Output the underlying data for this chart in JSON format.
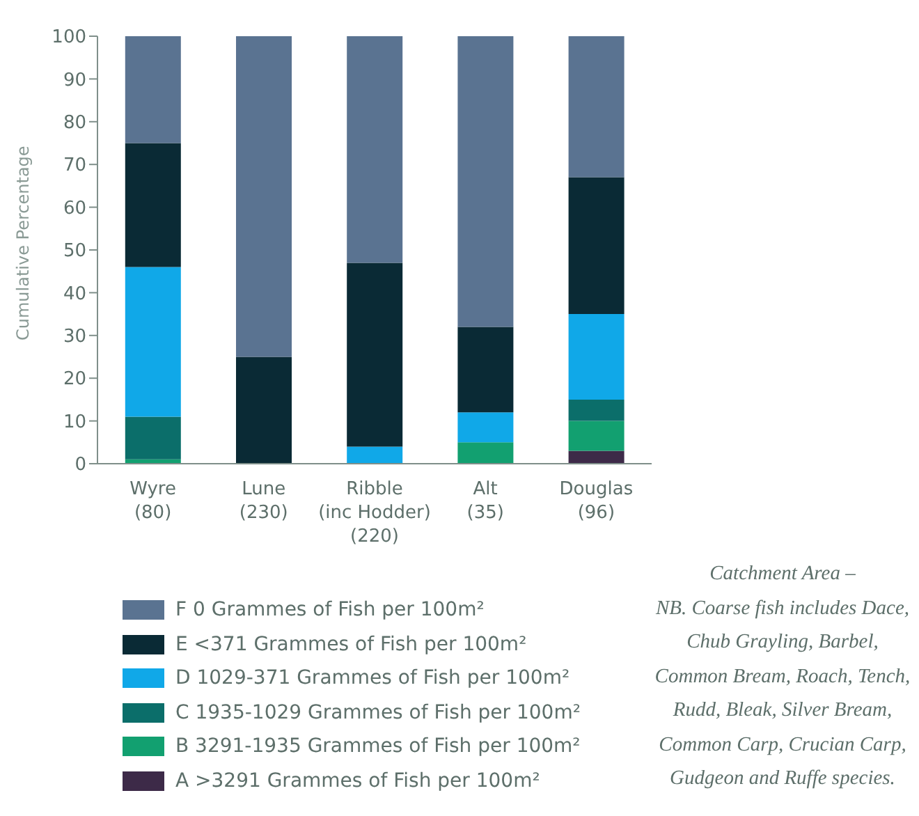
{
  "chart_data": {
    "type": "bar",
    "stacked": true,
    "ylabel": "Cumulative Percentage",
    "categories": [
      "Wyre\n(80)",
      "Lune\n(230)",
      "Ribble\n(inc Hodder)\n(220)",
      "Alt\n(35)",
      "Douglas\n(96)"
    ],
    "series": [
      {
        "name": "A >3291 Grammes of Fish per 100m²",
        "color": "#3d2a48",
        "values": [
          0,
          0,
          0,
          0,
          3
        ]
      },
      {
        "name": "B 3291-1935 Grammes of Fish per 100m²",
        "color": "#12a070",
        "values": [
          1,
          0,
          0,
          5,
          7
        ]
      },
      {
        "name": "C 1935-1029 Grammes of Fish per 100m²",
        "color": "#0b6e6a",
        "values": [
          10,
          0,
          0,
          0,
          5
        ]
      },
      {
        "name": "D 1029-371 Grammes of Fish per 100m²",
        "color": "#10a8e8",
        "values": [
          35,
          0,
          4,
          7,
          20
        ]
      },
      {
        "name": "E <371 Grammes of Fish per 100m²",
        "color": "#0a2a35",
        "values": [
          29,
          25,
          43,
          20,
          32
        ]
      },
      {
        "name": "F 0 Grammes of Fish per 100m²",
        "color": "#5a7391",
        "values": [
          25,
          75,
          53,
          68,
          33
        ]
      }
    ],
    "ylim": [
      0,
      100
    ],
    "yticks": [
      0,
      10,
      20,
      30,
      40,
      50,
      60,
      70,
      80,
      90,
      100
    ],
    "grid": false,
    "legend": "bottom",
    "annotations": [
      "Catchment Area –",
      "NB. Coarse fish includes Dace, Chub Grayling, Barbel, Common Bream, Roach, Tench, Rudd, Bleak, Silver Bream, Common Carp, Crucian Carp, Gudgeon and Ruffe species."
    ]
  }
}
